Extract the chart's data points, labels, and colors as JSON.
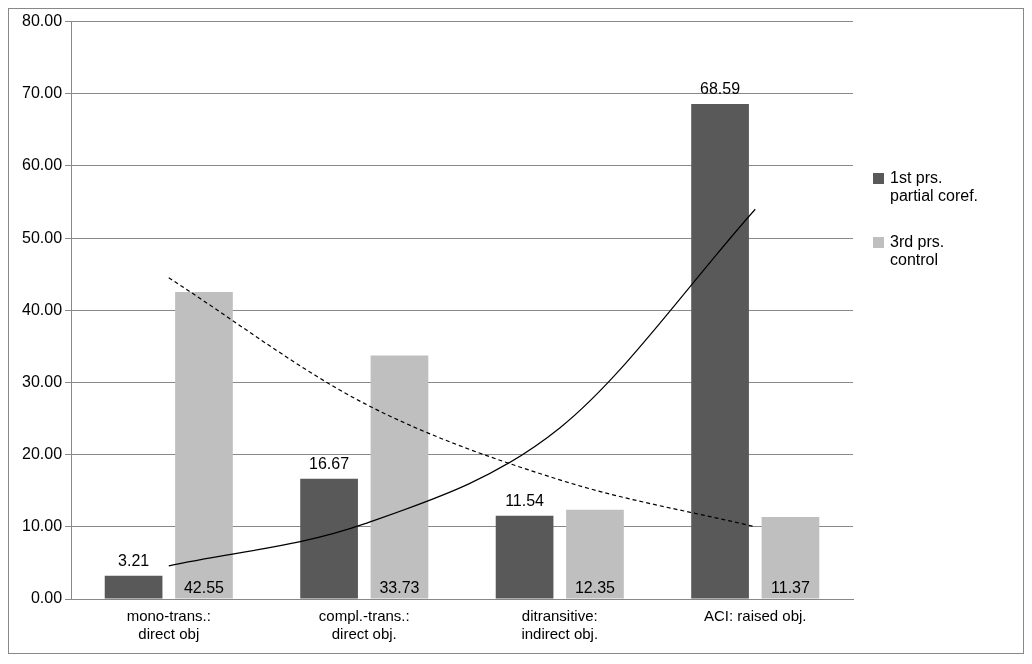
{
  "chart_data": {
    "type": "bar",
    "categories": [
      "mono-trans.: direct obj",
      "compl.-trans.: direct obj.",
      "ditransitive: indirect obj.",
      "ACI: raised obj."
    ],
    "series": [
      {
        "name": "1st prs. partial coref.",
        "color": "#595959",
        "values": [
          3.21,
          16.67,
          11.54,
          68.59
        ],
        "value_labels": [
          "3.21",
          "16.67",
          "11.54",
          "68.59"
        ]
      },
      {
        "name": "3rd prs. control",
        "color": "#bfbfbf",
        "values": [
          42.55,
          33.73,
          12.35,
          11.37
        ],
        "value_labels": [
          "42.55",
          "33.73",
          "12.35",
          "11.37"
        ]
      },
      {
        "type": "line",
        "color": "#000000",
        "line_style": "solid",
        "values": [
          4.6,
          10.4,
          23.7,
          54
        ]
      },
      {
        "type": "line",
        "color": "#000000",
        "line_style": "dashed",
        "values": [
          44.5,
          27.1,
          16.5,
          10
        ]
      }
    ],
    "ylim": [
      0,
      80
    ],
    "yticks": [
      {
        "value": 0,
        "label": "0.00"
      },
      {
        "value": 10,
        "label": "10.00"
      },
      {
        "value": 20,
        "label": "20.00"
      },
      {
        "value": 30,
        "label": "30.00"
      },
      {
        "value": 40,
        "label": "40.00"
      },
      {
        "value": 50,
        "label": "50.00"
      },
      {
        "value": 60,
        "label": "60.00"
      },
      {
        "value": 70,
        "label": "70.00"
      },
      {
        "value": 80,
        "label": "80.00"
      }
    ],
    "grid": "y",
    "legend": "right",
    "marker": "none"
  }
}
